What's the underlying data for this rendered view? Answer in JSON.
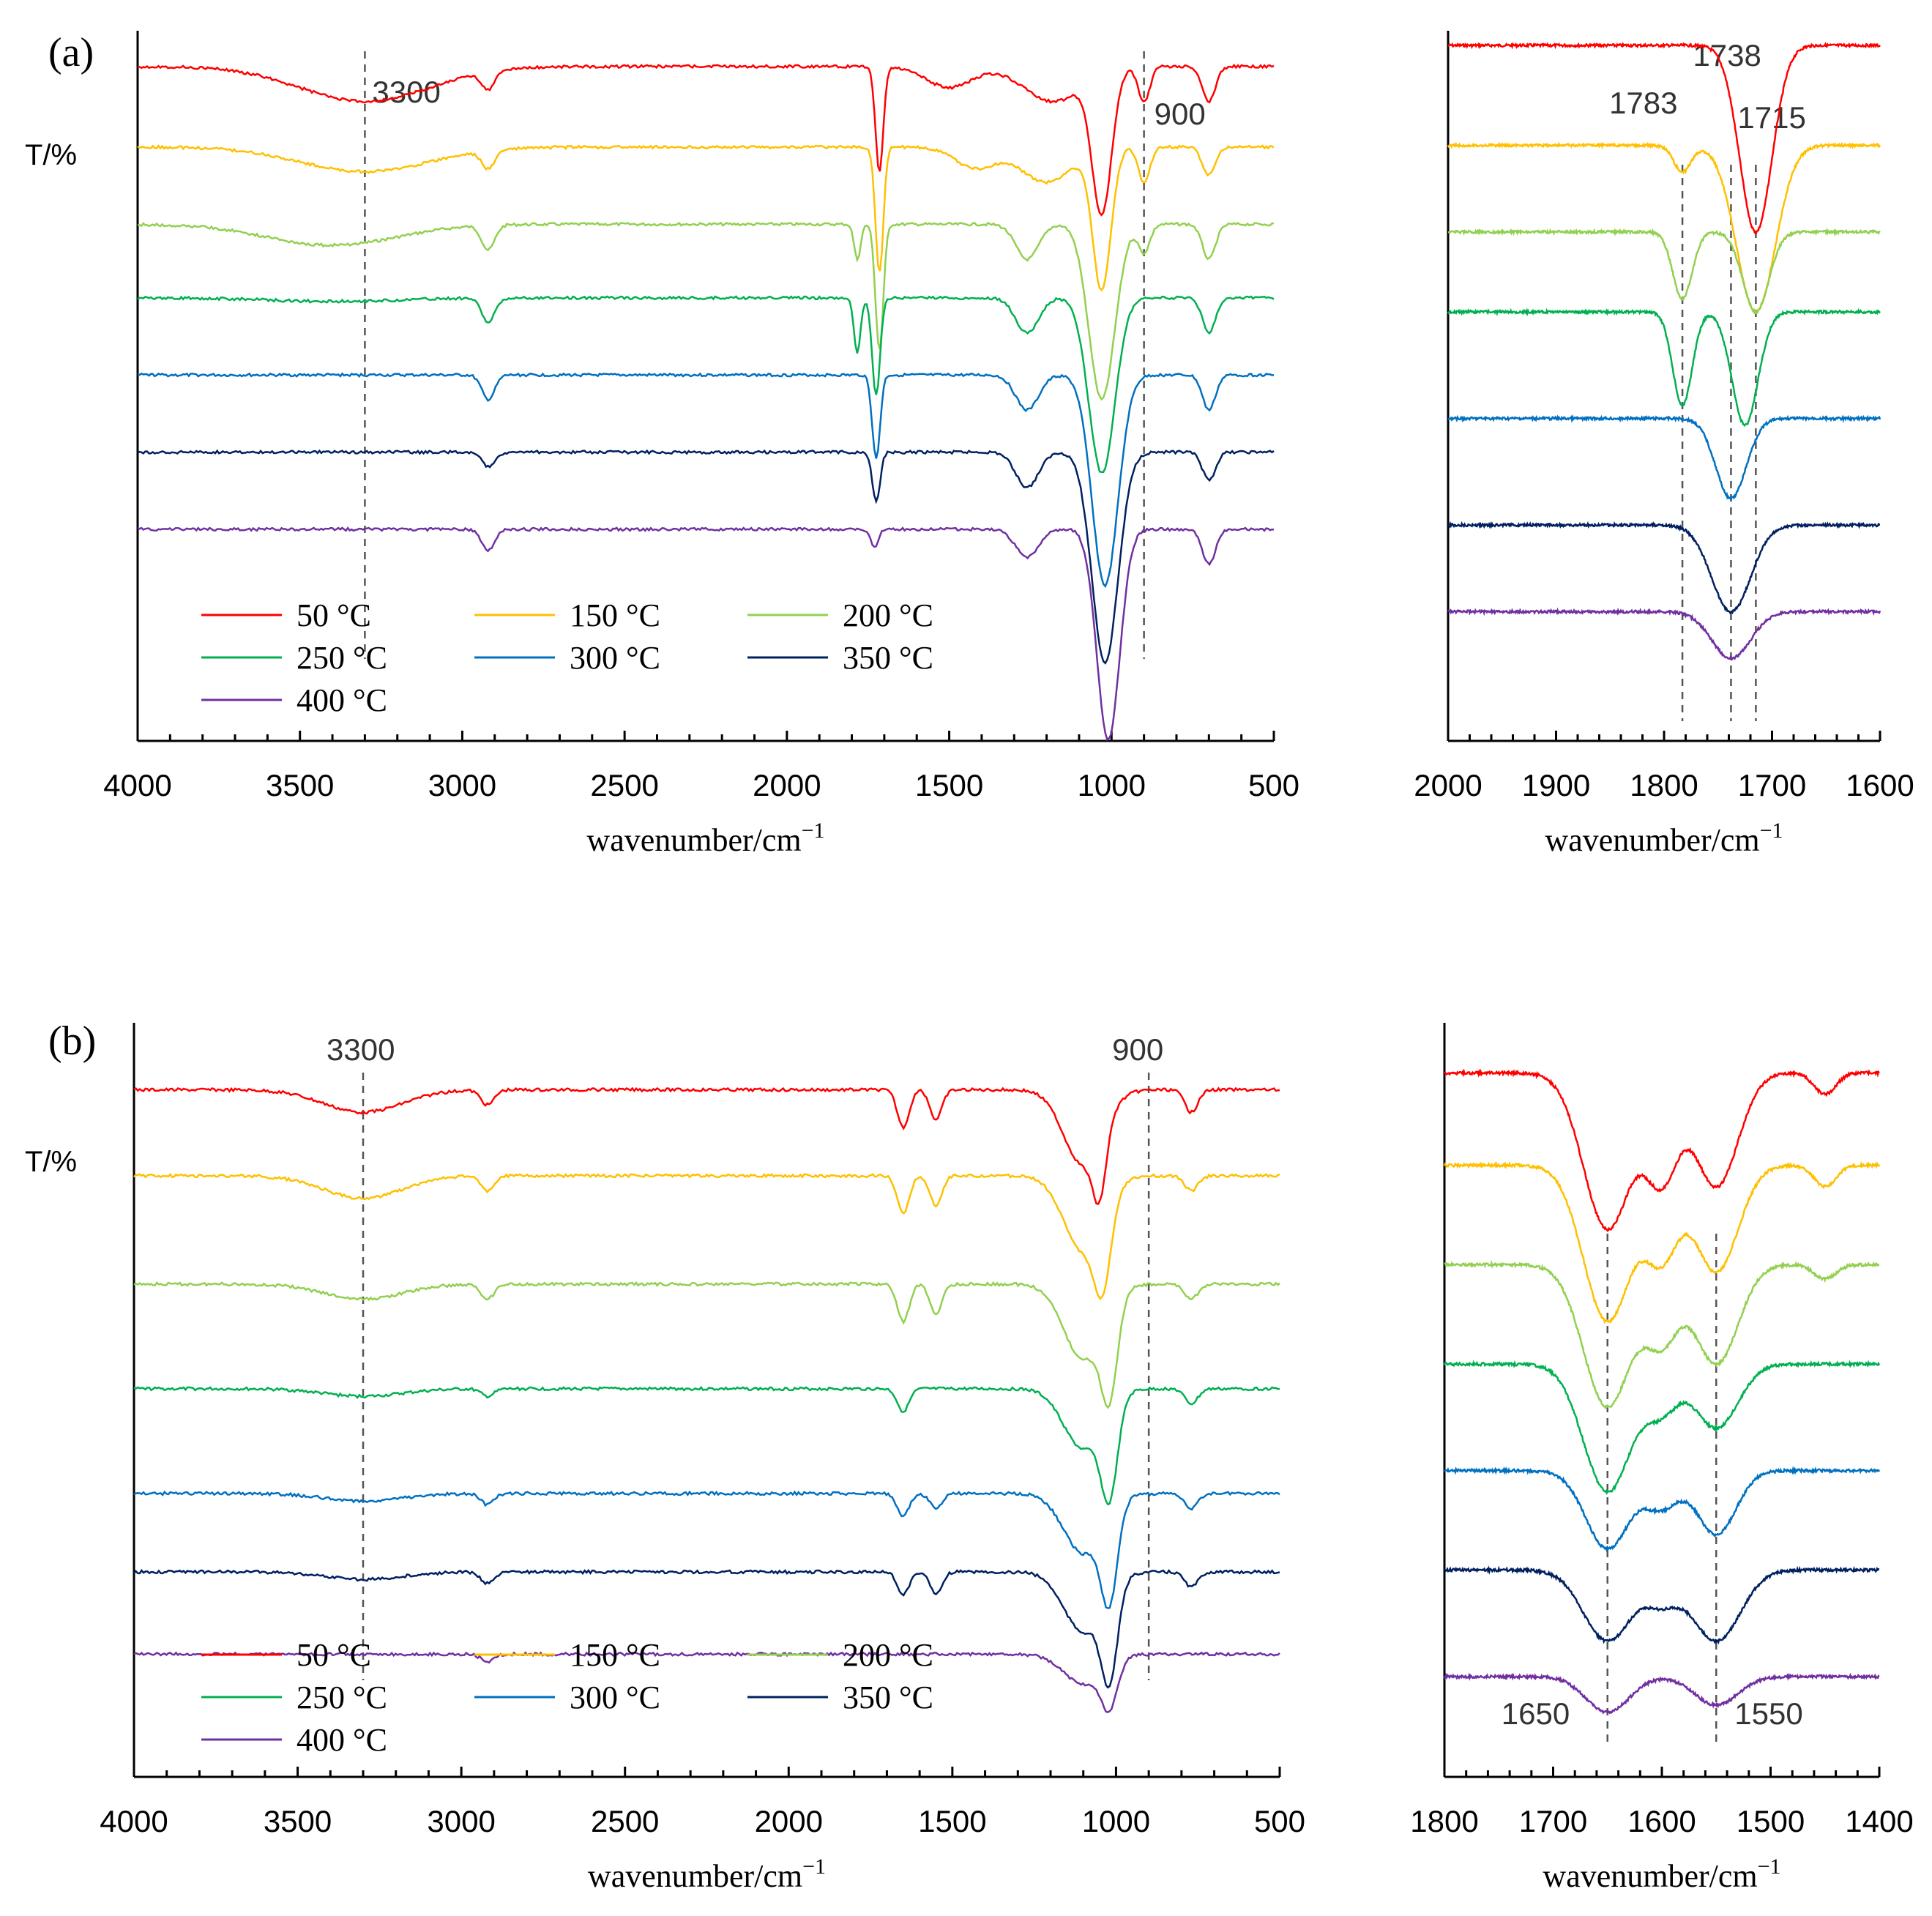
{
  "figure": {
    "panel_labels": [
      "(a)",
      "(b)"
    ],
    "y_label": "T/%",
    "x_label_main": "wavenumber/cm",
    "x_label_sup": "−1"
  },
  "legend": [
    {
      "label": "50 °C",
      "color": "#ff0000"
    },
    {
      "label": "150 °C",
      "color": "#ffc000"
    },
    {
      "label": "200 °C",
      "color": "#92d050"
    },
    {
      "label": "250 °C",
      "color": "#00b050"
    },
    {
      "label": "300 °C",
      "color": "#0070c0"
    },
    {
      "label": "350 °C",
      "color": "#002060"
    },
    {
      "label": "400 °C",
      "color": "#7030a0"
    }
  ],
  "chart_data": [
    {
      "id": "a-main",
      "type": "line",
      "title": "(a)",
      "xlabel": "wavenumber/cm−1",
      "ylabel": "T/%",
      "xlim": [
        4000,
        500
      ],
      "xticks": [
        4000,
        3500,
        3000,
        2500,
        2000,
        1500,
        1000,
        500
      ],
      "reference_lines": [
        3300,
        900
      ],
      "annotations": [
        "3300",
        "900"
      ],
      "series": [
        {
          "name": "50 °C",
          "baseline": 0.03,
          "peaks": [
            [
              3300,
              0.05,
              200
            ],
            [
              2920,
              0.025,
              20
            ],
            [
              1715,
              0.15,
              12
            ],
            [
              1500,
              0.03,
              70
            ],
            [
              1180,
              0.05,
              90
            ],
            [
              1030,
              0.2,
              30
            ],
            [
              900,
              0.05,
              18
            ],
            [
              700,
              0.05,
              20
            ]
          ]
        },
        {
          "name": "150 °C",
          "baseline": 0.145,
          "peaks": [
            [
              3300,
              0.035,
              200
            ],
            [
              2920,
              0.025,
              20
            ],
            [
              1715,
              0.18,
              12
            ],
            [
              1420,
              0.03,
              60
            ],
            [
              1200,
              0.05,
              80
            ],
            [
              1030,
              0.2,
              28
            ],
            [
              900,
              0.05,
              18
            ],
            [
              700,
              0.04,
              20
            ]
          ]
        },
        {
          "name": "200 °C",
          "baseline": 0.255,
          "peaks": [
            [
              3400,
              0.03,
              200
            ],
            [
              2920,
              0.035,
              20
            ],
            [
              1783,
              0.05,
              10
            ],
            [
              1715,
              0.18,
              12
            ],
            [
              1260,
              0.05,
              35
            ],
            [
              1030,
              0.25,
              40
            ],
            [
              900,
              0.04,
              18
            ],
            [
              700,
              0.05,
              20
            ]
          ]
        },
        {
          "name": "250 °C",
          "baseline": 0.36,
          "peaks": [
            [
              3400,
              0.005,
              200
            ],
            [
              2920,
              0.035,
              20
            ],
            [
              1783,
              0.08,
              10
            ],
            [
              1725,
              0.14,
              12
            ],
            [
              1260,
              0.05,
              35
            ],
            [
              1030,
              0.25,
              40
            ],
            [
              700,
              0.05,
              20
            ]
          ]
        },
        {
          "name": "300 °C",
          "baseline": 0.47,
          "peaks": [
            [
              2920,
              0.035,
              20
            ],
            [
              1725,
              0.12,
              12
            ],
            [
              1260,
              0.05,
              35
            ],
            [
              1020,
              0.3,
              40
            ],
            [
              700,
              0.05,
              20
            ]
          ]
        },
        {
          "name": "350 °C",
          "baseline": 0.58,
          "peaks": [
            [
              2920,
              0.02,
              20
            ],
            [
              1725,
              0.07,
              12
            ],
            [
              1260,
              0.05,
              35
            ],
            [
              1020,
              0.3,
              40
            ],
            [
              700,
              0.04,
              20
            ]
          ]
        },
        {
          "name": "400 °C",
          "baseline": 0.69,
          "peaks": [
            [
              2920,
              0.03,
              20
            ],
            [
              1730,
              0.025,
              12
            ],
            [
              1260,
              0.04,
              35
            ],
            [
              1010,
              0.3,
              35
            ],
            [
              700,
              0.05,
              20
            ]
          ]
        }
      ]
    },
    {
      "id": "a-inset",
      "type": "line",
      "xlabel": "wavenumber/cm−1",
      "xlim": [
        2000,
        1600
      ],
      "xticks": [
        2000,
        1900,
        1800,
        1700,
        1600
      ],
      "reference_lines": [
        1783,
        1738,
        1715
      ],
      "annotations": [
        "1783",
        "1738",
        "1715"
      ],
      "series": [
        {
          "name": "50 °C",
          "baseline": 0.0,
          "peaks": [
            [
              1715,
              0.28,
              15
            ]
          ]
        },
        {
          "name": "150 °C",
          "baseline": 0.15,
          "peaks": [
            [
              1783,
              0.04,
              8
            ],
            [
              1715,
              0.25,
              18
            ]
          ]
        },
        {
          "name": "200 °C",
          "baseline": 0.28,
          "peaks": [
            [
              1783,
              0.1,
              9
            ],
            [
              1715,
              0.12,
              12
            ]
          ]
        },
        {
          "name": "250 °C",
          "baseline": 0.4,
          "peaks": [
            [
              1783,
              0.14,
              9
            ],
            [
              1725,
              0.17,
              12
            ]
          ]
        },
        {
          "name": "300 °C",
          "baseline": 0.56,
          "peaks": [
            [
              1738,
              0.12,
              14
            ]
          ]
        },
        {
          "name": "350 °C",
          "baseline": 0.72,
          "peaks": [
            [
              1738,
              0.13,
              18
            ]
          ]
        },
        {
          "name": "400 °C",
          "baseline": 0.85,
          "peaks": [
            [
              1738,
              0.07,
              18
            ]
          ]
        }
      ]
    },
    {
      "id": "b-main",
      "type": "line",
      "title": "(b)",
      "xlabel": "wavenumber/cm−1",
      "ylabel": "T/%",
      "xlim": [
        4000,
        500
      ],
      "xticks": [
        4000,
        3500,
        3000,
        2500,
        2000,
        1500,
        1000,
        500
      ],
      "reference_lines": [
        3300,
        900
      ],
      "annotations": [
        "3300",
        "900"
      ],
      "series": [
        {
          "name": "50 °C",
          "baseline": 0.07,
          "peaks": [
            [
              3300,
              0.03,
              120
            ],
            [
              2920,
              0.02,
              20
            ],
            [
              1650,
              0.05,
              18
            ],
            [
              1550,
              0.04,
              18
            ],
            [
              1100,
              0.1,
              60
            ],
            [
              1050,
              0.08,
              20
            ],
            [
              770,
              0.03,
              20
            ]
          ]
        },
        {
          "name": "150 °C",
          "baseline": 0.185,
          "peaks": [
            [
              3300,
              0.03,
              120
            ],
            [
              2920,
              0.02,
              20
            ],
            [
              1650,
              0.05,
              18
            ],
            [
              1550,
              0.04,
              18
            ],
            [
              1100,
              0.1,
              60
            ],
            [
              1040,
              0.1,
              25
            ],
            [
              770,
              0.02,
              20
            ]
          ]
        },
        {
          "name": "200 °C",
          "baseline": 0.33,
          "peaks": [
            [
              3300,
              0.02,
              120
            ],
            [
              2920,
              0.02,
              20
            ],
            [
              1650,
              0.05,
              18
            ],
            [
              1550,
              0.04,
              18
            ],
            [
              1100,
              0.1,
              60
            ],
            [
              1020,
              0.12,
              25
            ],
            [
              770,
              0.02,
              20
            ]
          ]
        },
        {
          "name": "250 °C",
          "baseline": 0.47,
          "peaks": [
            [
              3300,
              0.01,
              120
            ],
            [
              2920,
              0.01,
              20
            ],
            [
              1650,
              0.03,
              18
            ],
            [
              1100,
              0.08,
              60
            ],
            [
              1020,
              0.12,
              25
            ],
            [
              770,
              0.02,
              20
            ]
          ]
        },
        {
          "name": "300 °C",
          "baseline": 0.61,
          "peaks": [
            [
              3300,
              0.01,
              120
            ],
            [
              2920,
              0.015,
              20
            ],
            [
              1650,
              0.03,
              18
            ],
            [
              1550,
              0.02,
              18
            ],
            [
              1100,
              0.08,
              60
            ],
            [
              1020,
              0.12,
              25
            ],
            [
              770,
              0.02,
              20
            ]
          ]
        },
        {
          "name": "350 °C",
          "baseline": 0.715,
          "peaks": [
            [
              3300,
              0.01,
              120
            ],
            [
              2920,
              0.015,
              20
            ],
            [
              1650,
              0.03,
              18
            ],
            [
              1550,
              0.03,
              18
            ],
            [
              1100,
              0.08,
              60
            ],
            [
              1020,
              0.12,
              25
            ],
            [
              770,
              0.02,
              20
            ]
          ]
        },
        {
          "name": "400 °C",
          "baseline": 0.825,
          "peaks": [
            [
              2920,
              0.01,
              20
            ],
            [
              1100,
              0.04,
              60
            ],
            [
              1020,
              0.06,
              25
            ]
          ]
        }
      ]
    },
    {
      "id": "b-inset",
      "type": "line",
      "xlabel": "wavenumber/cm−1",
      "xlim": [
        1800,
        1400
      ],
      "xticks": [
        1800,
        1700,
        1600,
        1500,
        1400
      ],
      "reference_lines": [
        1650,
        1550
      ],
      "annotations": [
        "1650",
        "1550"
      ],
      "series": [
        {
          "name": "50 °C",
          "baseline": 0.05,
          "peaks": [
            [
              1650,
              0.22,
              22
            ],
            [
              1600,
              0.14,
              15
            ],
            [
              1550,
              0.16,
              20
            ],
            [
              1450,
              0.03,
              10
            ]
          ]
        },
        {
          "name": "150 °C",
          "baseline": 0.18,
          "peaks": [
            [
              1650,
              0.22,
              22
            ],
            [
              1600,
              0.12,
              15
            ],
            [
              1550,
              0.15,
              20
            ],
            [
              1450,
              0.03,
              10
            ]
          ]
        },
        {
          "name": "200 °C",
          "baseline": 0.32,
          "peaks": [
            [
              1650,
              0.2,
              22
            ],
            [
              1600,
              0.1,
              15
            ],
            [
              1550,
              0.14,
              20
            ],
            [
              1450,
              0.02,
              10
            ]
          ]
        },
        {
          "name": "250 °C",
          "baseline": 0.46,
          "peaks": [
            [
              1650,
              0.18,
              22
            ],
            [
              1600,
              0.06,
              15
            ],
            [
              1550,
              0.09,
              20
            ]
          ]
        },
        {
          "name": "300 °C",
          "baseline": 0.61,
          "peaks": [
            [
              1650,
              0.11,
              20
            ],
            [
              1600,
              0.05,
              15
            ],
            [
              1550,
              0.09,
              18
            ]
          ]
        },
        {
          "name": "350 °C",
          "baseline": 0.75,
          "peaks": [
            [
              1650,
              0.1,
              22
            ],
            [
              1600,
              0.04,
              15
            ],
            [
              1550,
              0.1,
              22
            ]
          ]
        },
        {
          "name": "400 °C",
          "baseline": 0.9,
          "peaks": [
            [
              1650,
              0.05,
              20
            ],
            [
              1550,
              0.04,
              20
            ]
          ]
        }
      ]
    }
  ]
}
